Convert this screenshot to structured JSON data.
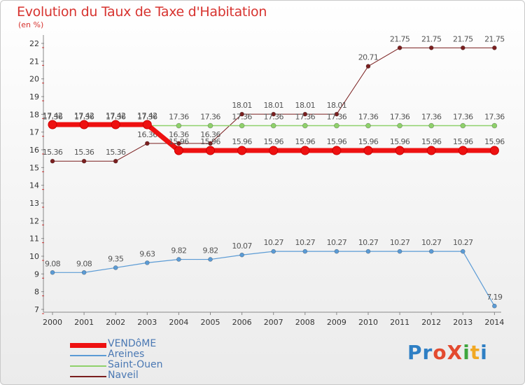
{
  "title": "Evolution du Taux de Taxe d'Habitation",
  "subtitle": "(en %)",
  "logo": {
    "text": "ProXiti",
    "letters": [
      "P",
      "r",
      "o",
      "X",
      "i",
      "t",
      "i"
    ],
    "colors": [
      "#2e7fc4",
      "#2e7fc4",
      "#e34a2f",
      "#e34a2f",
      "#3ea63e",
      "#f1a823",
      "#2e7fc4"
    ]
  },
  "chart_data": {
    "type": "line",
    "x": [
      2000,
      2001,
      2002,
      2003,
      2004,
      2005,
      2006,
      2007,
      2008,
      2009,
      2010,
      2011,
      2012,
      2013,
      2014
    ],
    "ylim": [
      7,
      22
    ],
    "yticks": [
      7,
      8,
      9,
      10,
      11,
      12,
      13,
      14,
      15,
      16,
      17,
      18,
      19,
      20,
      21,
      22
    ],
    "grid": false,
    "legend": "bottom-left",
    "series": [
      {
        "name": "Naveil",
        "color": "#7a1f1f",
        "width": 1,
        "marker": 3,
        "values": [
          15.36,
          15.36,
          15.36,
          16.36,
          16.36,
          16.36,
          18.01,
          18.01,
          18.01,
          18.01,
          20.71,
          21.75,
          21.75,
          21.75,
          21.75
        ],
        "labels": [
          "15.36",
          "15.36",
          "15.36",
          "16.36",
          "16.36",
          "16.36",
          "18.01",
          "18.01",
          "18.01",
          "18.01",
          "20.71",
          "21.75",
          "21.75",
          "21.75",
          "21.75"
        ]
      },
      {
        "name": "Saint-Ouen",
        "color": "#8fd16b",
        "width": 1.5,
        "marker": 3.5,
        "values": [
          17.36,
          17.36,
          17.36,
          17.36,
          17.36,
          17.36,
          17.36,
          17.36,
          17.36,
          17.36,
          17.36,
          17.36,
          17.36,
          17.36,
          17.36
        ],
        "labels": [
          "17.36",
          "17.36",
          "17.36",
          "17.36",
          "17.36",
          "17.36",
          "17.36",
          "17.36",
          "17.36",
          "17.36",
          "17.36",
          "17.36",
          "17.36",
          "17.36",
          "17.36"
        ]
      },
      {
        "name": "Areines",
        "color": "#5b9bd5",
        "width": 1.2,
        "marker": 3,
        "values": [
          9.08,
          9.08,
          9.35,
          9.63,
          9.82,
          9.82,
          10.07,
          10.27,
          10.27,
          10.27,
          10.27,
          10.27,
          10.27,
          10.27,
          7.19
        ],
        "labels": [
          "9.08",
          "9.08",
          "9.35",
          "9.63",
          "9.82",
          "9.82",
          "10.07",
          "10.27",
          "10.27",
          "10.27",
          "10.27",
          "10.27",
          "10.27",
          "10.27",
          "7.19"
        ]
      },
      {
        "name": "VENDôME",
        "color": "#ee1111",
        "width": 7,
        "marker": 6,
        "values": [
          17.42,
          17.42,
          17.42,
          17.42,
          15.96,
          15.96,
          15.96,
          15.96,
          15.96,
          15.96,
          15.96,
          15.96,
          15.96,
          15.96,
          15.96
        ],
        "labels": [
          "17.42",
          "17.42",
          "17.42",
          "17.42",
          "15.96",
          "15.96",
          "15.96",
          "15.96",
          "15.96",
          "15.96",
          "15.96",
          "15.96",
          "15.96",
          "15.96",
          "15.96"
        ]
      }
    ],
    "legend_order": [
      "VENDôME",
      "Areines",
      "Saint-Ouen",
      "Naveil"
    ]
  }
}
